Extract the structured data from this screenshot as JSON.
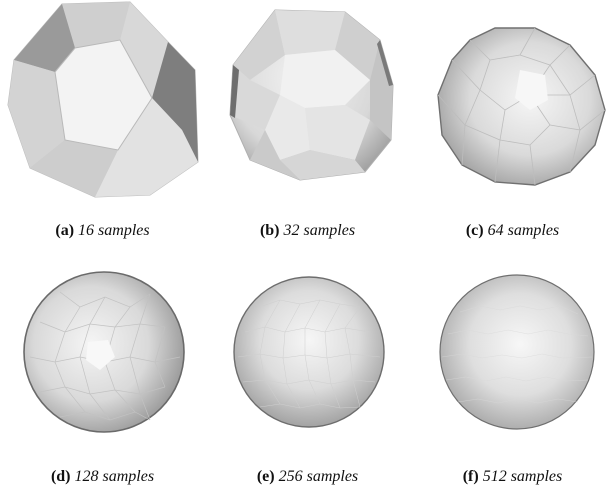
{
  "figure": {
    "panels": [
      {
        "label": "(a)",
        "caption": "16 samples",
        "samples": 16
      },
      {
        "label": "(b)",
        "caption": "32 samples",
        "samples": 32
      },
      {
        "label": "(c)",
        "caption": "64 samples",
        "samples": 64
      },
      {
        "label": "(d)",
        "caption": "128 samples",
        "samples": 128
      },
      {
        "label": "(e)",
        "caption": "256 samples",
        "samples": 256
      },
      {
        "label": "(f)",
        "caption": "512 samples",
        "samples": 512
      }
    ],
    "colors": {
      "highlight": "#f4f4f4",
      "mid": "#d4d4d4",
      "shadow": "#8a8a8a",
      "edge": "#b4b4b4"
    }
  }
}
